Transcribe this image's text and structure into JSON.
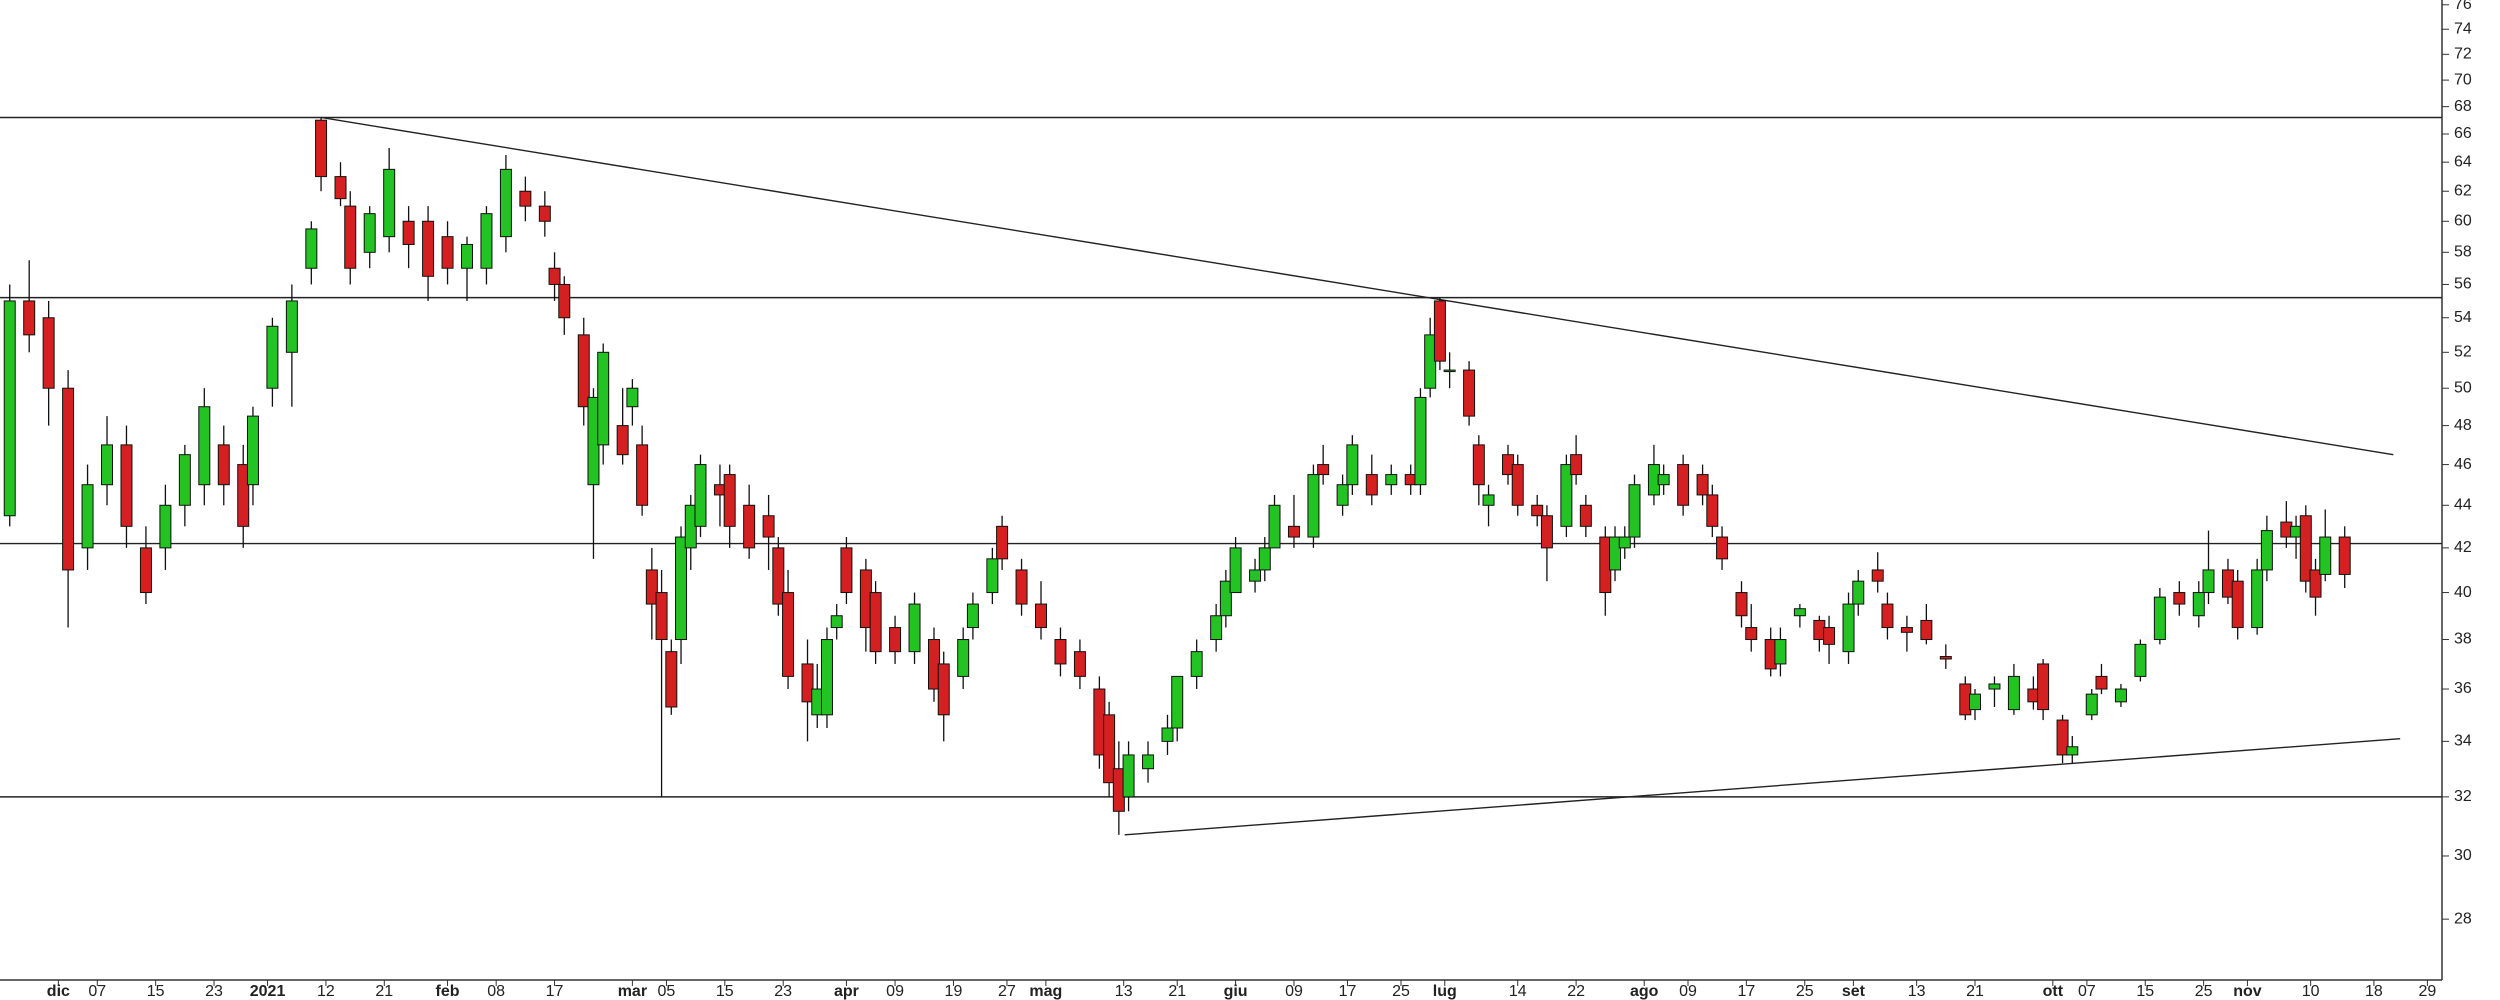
{
  "chart_data": {
    "type": "candlestick",
    "log_scale": true,
    "up_color": "#22c322",
    "down_color": "#d42020",
    "xlim": [
      0,
      251
    ],
    "ylim": [
      26.2,
      76.4
    ],
    "yticks": [
      28,
      30,
      32,
      34,
      36,
      38,
      40,
      42,
      44,
      46,
      48,
      50,
      52,
      54,
      56,
      58,
      60,
      62,
      64,
      66,
      68,
      70,
      72,
      74,
      76
    ],
    "xticks": [
      {
        "value": 6,
        "label": "dic"
      },
      {
        "value": 10,
        "label": "07"
      },
      {
        "value": 16,
        "label": "15"
      },
      {
        "value": 22,
        "label": "23"
      },
      {
        "value": 27.5,
        "label": "2021"
      },
      {
        "value": 33.5,
        "label": "12"
      },
      {
        "value": 39.5,
        "label": "21"
      },
      {
        "value": 46,
        "label": "feb"
      },
      {
        "value": 51,
        "label": "08"
      },
      {
        "value": 57,
        "label": "17"
      },
      {
        "value": 65,
        "label": "mar"
      },
      {
        "value": 68.5,
        "label": "05"
      },
      {
        "value": 74.5,
        "label": "15"
      },
      {
        "value": 80.5,
        "label": "23"
      },
      {
        "value": 87,
        "label": "apr"
      },
      {
        "value": 92,
        "label": "09"
      },
      {
        "value": 98,
        "label": "19"
      },
      {
        "value": 103.5,
        "label": "27"
      },
      {
        "value": 107.5,
        "label": "mag"
      },
      {
        "value": 115.5,
        "label": "13"
      },
      {
        "value": 121,
        "label": "21"
      },
      {
        "value": 127,
        "label": "giu"
      },
      {
        "value": 133,
        "label": "09"
      },
      {
        "value": 138.5,
        "label": "17"
      },
      {
        "value": 144,
        "label": "25"
      },
      {
        "value": 148.5,
        "label": "lug"
      },
      {
        "value": 156,
        "label": "14"
      },
      {
        "value": 162,
        "label": "22"
      },
      {
        "value": 169,
        "label": "ago"
      },
      {
        "value": 173.5,
        "label": "09"
      },
      {
        "value": 179.5,
        "label": "17"
      },
      {
        "value": 185.5,
        "label": "25"
      },
      {
        "value": 190.5,
        "label": "set"
      },
      {
        "value": 197,
        "label": "13"
      },
      {
        "value": 203,
        "label": "21"
      },
      {
        "value": 211,
        "label": "ott"
      },
      {
        "value": 214.5,
        "label": "07"
      },
      {
        "value": 220.5,
        "label": "15"
      },
      {
        "value": 226.5,
        "label": "25"
      },
      {
        "value": 231,
        "label": "nov"
      },
      {
        "value": 237.5,
        "label": "10"
      },
      {
        "value": 244,
        "label": "18"
      },
      {
        "value": 249.5,
        "label": "29"
      }
    ],
    "hlines": [
      67.2,
      55.2,
      42.2,
      32
    ],
    "trendlines": [
      [
        [
          33,
          67.2
        ],
        [
          246,
          46.5
        ]
      ],
      [
        [
          115.6,
          30.7
        ],
        [
          246.7,
          34.1
        ]
      ]
    ],
    "candles": [
      [
        1,
        43.5,
        56,
        43,
        55
      ],
      [
        3,
        55,
        57.5,
        52,
        53
      ],
      [
        5,
        54,
        55,
        48,
        50
      ],
      [
        7,
        50,
        51,
        38.5,
        41
      ],
      [
        9,
        42,
        46,
        41,
        45
      ],
      [
        11,
        45,
        48.5,
        44,
        47
      ],
      [
        13,
        47,
        48,
        42,
        43
      ],
      [
        15,
        42,
        43,
        39.5,
        40
      ],
      [
        17,
        42,
        45,
        41,
        44
      ],
      [
        19,
        44,
        47,
        43,
        46.5
      ],
      [
        21,
        45,
        50,
        44,
        49
      ],
      [
        23,
        47,
        48,
        44,
        45
      ],
      [
        25,
        46,
        47,
        42,
        43
      ],
      [
        26,
        45,
        49,
        44,
        48.5
      ],
      [
        28,
        50,
        54,
        49,
        53.5
      ],
      [
        30,
        52,
        56,
        49,
        55
      ],
      [
        32,
        57,
        60,
        56,
        59.5
      ],
      [
        33,
        67,
        67.2,
        62,
        63
      ],
      [
        35,
        63,
        64,
        61,
        61.5
      ],
      [
        36,
        61,
        62,
        56,
        57
      ],
      [
        38,
        58,
        61,
        57,
        60.5
      ],
      [
        40,
        59,
        65,
        58,
        63.5
      ],
      [
        42,
        60,
        61,
        57,
        58.5
      ],
      [
        44,
        60,
        61,
        55,
        56.5
      ],
      [
        46,
        59,
        60,
        56,
        57
      ],
      [
        48,
        57,
        59,
        55,
        58.5
      ],
      [
        50,
        57,
        61,
        56,
        60.5
      ],
      [
        52,
        59,
        64.5,
        58,
        63.5
      ],
      [
        54,
        62,
        63,
        60,
        61
      ],
      [
        56,
        61,
        62,
        59,
        60
      ],
      [
        57,
        57,
        58,
        55,
        56
      ],
      [
        58,
        56,
        56.5,
        53,
        54
      ],
      [
        60,
        53,
        54,
        48,
        49
      ],
      [
        61,
        45,
        50,
        41.5,
        49.5
      ],
      [
        62,
        47,
        52.5,
        46,
        52
      ],
      [
        64,
        48,
        50,
        46,
        46.5
      ],
      [
        65,
        49,
        50.5,
        48,
        50
      ],
      [
        66,
        47,
        48,
        43.5,
        44
      ],
      [
        67,
        41,
        42,
        38,
        39.5
      ],
      [
        68,
        40,
        41,
        32,
        38
      ],
      [
        69,
        37.5,
        38,
        35,
        35.3
      ],
      [
        70,
        38,
        43,
        37,
        42.5
      ],
      [
        71,
        42,
        44.5,
        41,
        44
      ],
      [
        72,
        43,
        46.5,
        42.5,
        46
      ],
      [
        74,
        45,
        46,
        43,
        44.5
      ],
      [
        75,
        45.5,
        46,
        42,
        43
      ],
      [
        77,
        44,
        45,
        41.5,
        42
      ],
      [
        79,
        43.5,
        44.5,
        41,
        42.5
      ],
      [
        80,
        42,
        42.5,
        39,
        39.5
      ],
      [
        81,
        40,
        41,
        36,
        36.5
      ],
      [
        83,
        37,
        38,
        34,
        35.5
      ],
      [
        84,
        35,
        37,
        34.5,
        36
      ],
      [
        85,
        35,
        38.5,
        34.5,
        38
      ],
      [
        86,
        38.5,
        39.5,
        38,
        39
      ],
      [
        87,
        42,
        42.5,
        39.5,
        40
      ],
      [
        89,
        41,
        41.5,
        37.5,
        38.5
      ],
      [
        90,
        40,
        40.5,
        37,
        37.5
      ],
      [
        92,
        38.5,
        39,
        37,
        37.5
      ],
      [
        94,
        37.5,
        40,
        37,
        39.5
      ],
      [
        96,
        38,
        38.5,
        35.5,
        36
      ],
      [
        97,
        37,
        37.5,
        34,
        35
      ],
      [
        99,
        36.5,
        38.5,
        36,
        38
      ],
      [
        100,
        38.5,
        40,
        38,
        39.5
      ],
      [
        102,
        40,
        42,
        39.5,
        41.5
      ],
      [
        103,
        43,
        43.5,
        41,
        41.5
      ],
      [
        105,
        41,
        41.5,
        39,
        39.5
      ],
      [
        107,
        39.5,
        40.5,
        38,
        38.5
      ],
      [
        109,
        38,
        38.5,
        36.5,
        37
      ],
      [
        111,
        37.5,
        38,
        36,
        36.5
      ],
      [
        113,
        36,
        36.5,
        33,
        33.5
      ],
      [
        114,
        35,
        35.5,
        32,
        32.5
      ],
      [
        115,
        33,
        34,
        30.7,
        31.5
      ],
      [
        116,
        32,
        34,
        31.5,
        33.5
      ],
      [
        118,
        33,
        34,
        32.5,
        33.5
      ],
      [
        120,
        34,
        35,
        33.5,
        34.5
      ],
      [
        121,
        34.5,
        36.5,
        34,
        36.5
      ],
      [
        123,
        36.5,
        38,
        36,
        37.5
      ],
      [
        125,
        38,
        39.5,
        37.5,
        39
      ],
      [
        126,
        39,
        41,
        38.5,
        40.5
      ],
      [
        127,
        40,
        42.5,
        40,
        42
      ],
      [
        129,
        40.5,
        41.5,
        40,
        41
      ],
      [
        130,
        41,
        42.5,
        40.5,
        42
      ],
      [
        131,
        42,
        44.5,
        42,
        44
      ],
      [
        133,
        43,
        44.5,
        42,
        42.5
      ],
      [
        135,
        42.5,
        46,
        42,
        45.5
      ],
      [
        136,
        46,
        47,
        45,
        45.5
      ],
      [
        138,
        44,
        45.5,
        43.5,
        45
      ],
      [
        139,
        45,
        47.5,
        44.5,
        47
      ],
      [
        141,
        45.5,
        46.5,
        44,
        44.5
      ],
      [
        143,
        45,
        46,
        44.5,
        45.5
      ],
      [
        145,
        45.5,
        46,
        44.5,
        45
      ],
      [
        146,
        45,
        50,
        44.5,
        49.5
      ],
      [
        147,
        50,
        54,
        49.5,
        53
      ],
      [
        148,
        55,
        55.2,
        51,
        51.5
      ],
      [
        149,
        51,
        52,
        50,
        51
      ],
      [
        151,
        51,
        51.5,
        48,
        48.5
      ],
      [
        152,
        47,
        47.5,
        44,
        45
      ],
      [
        153,
        44,
        45,
        43,
        44.5
      ],
      [
        155,
        46.5,
        47,
        45,
        45.5
      ],
      [
        156,
        46,
        46.5,
        43.5,
        44
      ],
      [
        158,
        44,
        44.5,
        43,
        43.5
      ],
      [
        159,
        43.5,
        44,
        40.5,
        42
      ],
      [
        161,
        43,
        46.5,
        42.5,
        46
      ],
      [
        162,
        46.5,
        47.5,
        45,
        45.5
      ],
      [
        163,
        44,
        44.5,
        42.5,
        43
      ],
      [
        165,
        42.5,
        43,
        39,
        40
      ],
      [
        166,
        41,
        43,
        40.5,
        42.5
      ],
      [
        167,
        42,
        43,
        41.5,
        42.5
      ],
      [
        168,
        42.5,
        45.5,
        42,
        45
      ],
      [
        170,
        44.5,
        47,
        44,
        46
      ],
      [
        171,
        45,
        46,
        44.5,
        45.5
      ],
      [
        173,
        46,
        46.5,
        43.5,
        44
      ],
      [
        175,
        45.5,
        46,
        44,
        44.5
      ],
      [
        176,
        44.5,
        45,
        42.5,
        43
      ],
      [
        177,
        42.5,
        43,
        41,
        41.5
      ],
      [
        179,
        40,
        40.5,
        38.5,
        39
      ],
      [
        180,
        38.5,
        39.5,
        37.5,
        38
      ],
      [
        182,
        38,
        38.5,
        36.5,
        36.8
      ],
      [
        183,
        37,
        38.5,
        36.5,
        38
      ],
      [
        185,
        39,
        39.5,
        38.5,
        39.3
      ],
      [
        187,
        38.8,
        39,
        37.5,
        38
      ],
      [
        188,
        38.5,
        39,
        37,
        37.8
      ],
      [
        190,
        37.5,
        40,
        37,
        39.5
      ],
      [
        191,
        39.5,
        41,
        39,
        40.5
      ],
      [
        193,
        41,
        41.8,
        40,
        40.5
      ],
      [
        194,
        39.5,
        40,
        38,
        38.5
      ],
      [
        196,
        38.5,
        39,
        37.5,
        38.3
      ],
      [
        198,
        38.8,
        39.5,
        37.8,
        38
      ],
      [
        200,
        37.3,
        37.8,
        36.8,
        37.2
      ],
      [
        202,
        36.2,
        36.5,
        34.8,
        35
      ],
      [
        203,
        35.2,
        36,
        34.8,
        35.8
      ],
      [
        205,
        36,
        36.5,
        35.3,
        36.2
      ],
      [
        207,
        35.2,
        37,
        35,
        36.5
      ],
      [
        209,
        36,
        36.5,
        35.2,
        35.5
      ],
      [
        210,
        37,
        37.2,
        34.8,
        35.2
      ],
      [
        212,
        34.8,
        35,
        33.2,
        33.5
      ],
      [
        213,
        33.5,
        34.2,
        33.2,
        33.8
      ],
      [
        215,
        35,
        36,
        34.8,
        35.8
      ],
      [
        216,
        36.5,
        37,
        35.8,
        36
      ],
      [
        218,
        35.5,
        36.2,
        35.3,
        36
      ],
      [
        220,
        36.5,
        38,
        36.3,
        37.8
      ],
      [
        222,
        38,
        40.2,
        37.8,
        39.8
      ],
      [
        224,
        40,
        40.5,
        39,
        39.5
      ],
      [
        226,
        39,
        40.5,
        38.5,
        40
      ],
      [
        227,
        40,
        42.8,
        39.5,
        41
      ],
      [
        229,
        41,
        41.5,
        39.5,
        39.8
      ],
      [
        230,
        40.5,
        41,
        38,
        38.5
      ],
      [
        232,
        38.5,
        41.5,
        38.2,
        41
      ],
      [
        233,
        41,
        43.5,
        40.5,
        42.8
      ],
      [
        235,
        43.2,
        44.2,
        42,
        42.5
      ],
      [
        236,
        42.5,
        43.5,
        41.5,
        43
      ],
      [
        237,
        43.5,
        44,
        40,
        40.5
      ],
      [
        238,
        41,
        41.5,
        39,
        39.8
      ],
      [
        239,
        40.8,
        43.8,
        40.5,
        42.5
      ],
      [
        241,
        42.5,
        43,
        40.2,
        40.8
      ]
    ]
  }
}
